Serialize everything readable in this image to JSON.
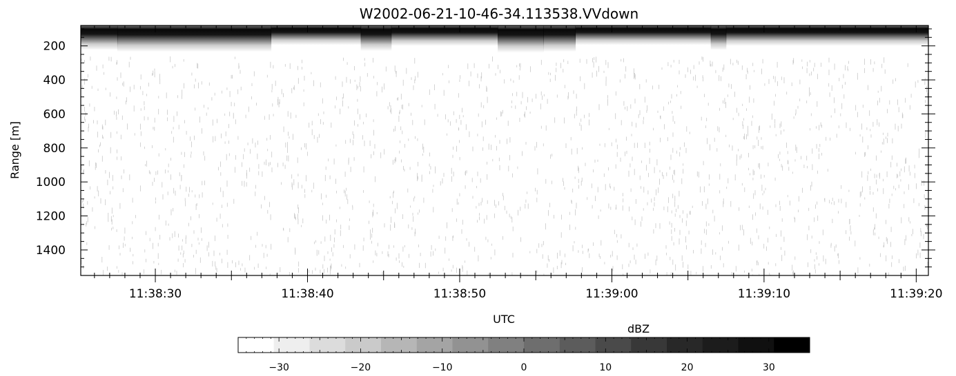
{
  "chart_data": {
    "type": "heatmap",
    "title": "W2002-06-21-10-46-34.113538.VVdown",
    "xlabel": "UTC",
    "ylabel": "Range [m]",
    "x_ticks": [
      {
        "label": "11:38:30",
        "seconds": 30
      },
      {
        "label": "11:38:40",
        "seconds": 40
      },
      {
        "label": "11:38:50",
        "seconds": 50
      },
      {
        "label": "11:39:00",
        "seconds": 60
      },
      {
        "label": "11:39:10",
        "seconds": 70
      },
      {
        "label": "11:39:20",
        "seconds": 80
      }
    ],
    "xlim_seconds": [
      25.1,
      80.8
    ],
    "y_ticks": [
      200,
      400,
      600,
      800,
      1000,
      1200,
      1400
    ],
    "ylim": [
      80,
      1550
    ],
    "y_inverted": true,
    "grid": false,
    "surface_echo": {
      "range_m": 120,
      "description_hidden": false,
      "tail_segments": [
        {
          "t0": 25.1,
          "t1": 27.5,
          "tail_m": 225
        },
        {
          "t0": 27.5,
          "t1": 37.6,
          "tail_m": 235
        },
        {
          "t0": 37.6,
          "t1": 43.5,
          "tail_m": 195
        },
        {
          "t0": 43.5,
          "t1": 45.5,
          "tail_m": 230
        },
        {
          "t0": 45.5,
          "t1": 52.5,
          "tail_m": 200
        },
        {
          "t0": 52.5,
          "t1": 55.5,
          "tail_m": 240
        },
        {
          "t0": 55.5,
          "t1": 57.6,
          "tail_m": 235
        },
        {
          "t0": 57.6,
          "t1": 66.5,
          "tail_m": 195
        },
        {
          "t0": 66.5,
          "t1": 67.5,
          "tail_m": 225
        },
        {
          "t0": 67.5,
          "t1": 80.8,
          "tail_m": 200
        }
      ]
    },
    "colorbar": {
      "label": "dBZ",
      "min": -35,
      "max": 35,
      "ticks": [
        -30,
        -20,
        -10,
        0,
        10,
        20,
        30
      ],
      "levels": 16,
      "colors": [
        "#ffffff",
        "#eeeeee",
        "#dcdcdc",
        "#cacaca",
        "#b6b6b6",
        "#a4a4a4",
        "#929292",
        "#808080",
        "#6e6e6e",
        "#5c5c5c",
        "#4a4a4a",
        "#383838",
        "#282828",
        "#1c1c1c",
        "#101010",
        "#000000"
      ]
    }
  }
}
